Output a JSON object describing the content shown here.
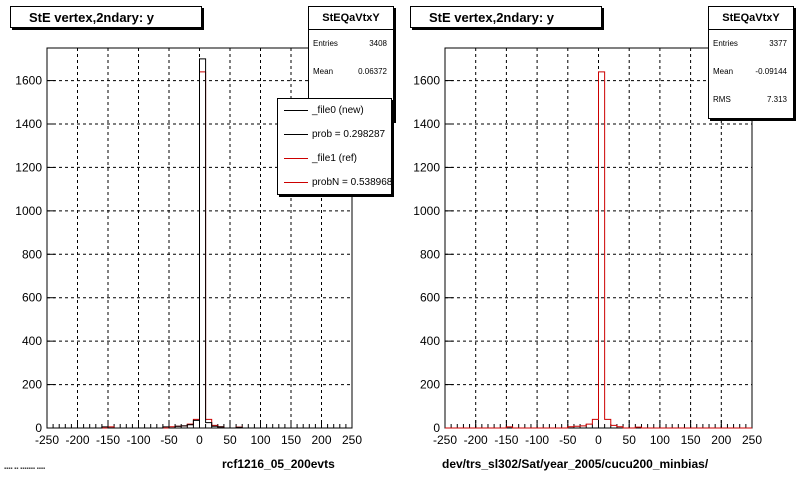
{
  "panels": [
    {
      "title": "StE  vertex,2ndary: y",
      "stats": {
        "name": "StEQaVtxY",
        "rows": [
          {
            "label": "Entries",
            "value": "3408"
          },
          {
            "label": "Mean",
            "value": "0.06372"
          }
        ]
      },
      "legend": [
        {
          "label": "_file0 (new)",
          "color": "#000000"
        },
        {
          "label": "prob = 0.298287",
          "color": "#000000"
        },
        {
          "label": "_file1 (ref)",
          "color": "#cc0000"
        },
        {
          "label": "probN = 0.538968",
          "color": "#cc0000"
        }
      ],
      "footer": "rcf1216_05_200evts"
    },
    {
      "title": "StE  vertex,2ndary: y",
      "stats": {
        "name": "StEQaVtxY",
        "rows": [
          {
            "label": "Entries",
            "value": "3377"
          },
          {
            "label": "Mean",
            "value": "-0.09144"
          },
          {
            "label": "RMS",
            "value": "7.313"
          }
        ]
      },
      "legend": [],
      "footer": "dev/trs_sl302/Sat/year_2005/cucu200_minbias/"
    }
  ],
  "colors": {
    "new": "#000000",
    "ref": "#cc0000",
    "grid": "#000000"
  },
  "chart_data": [
    {
      "type": "histogram",
      "title": "StE  vertex,2ndary: y",
      "xlim": [
        -250,
        250
      ],
      "ylim": [
        0,
        1750
      ],
      "xticks": [
        -250,
        -200,
        -150,
        -100,
        -50,
        0,
        50,
        100,
        150,
        200,
        250
      ],
      "yticks": [
        0,
        200,
        400,
        600,
        800,
        1000,
        1200,
        1400,
        1600
      ],
      "grid": true,
      "bin_width": 10,
      "series": [
        {
          "name": "_file0 (new)",
          "color": "#000000",
          "bins": [
            [
              -160,
              5
            ],
            [
              -60,
              5
            ],
            [
              -40,
              8
            ],
            [
              -30,
              10
            ],
            [
              -20,
              15
            ],
            [
              -10,
              35
            ],
            [
              0,
              1700
            ],
            [
              10,
              25
            ],
            [
              20,
              8
            ],
            [
              30,
              5
            ],
            [
              60,
              3
            ]
          ]
        },
        {
          "name": "_file1 (ref)",
          "color": "#cc0000",
          "bins": [
            [
              -150,
              5
            ],
            [
              -50,
              6
            ],
            [
              -40,
              8
            ],
            [
              -30,
              10
            ],
            [
              -20,
              18
            ],
            [
              -10,
              40
            ],
            [
              0,
              1640
            ],
            [
              10,
              40
            ],
            [
              20,
              12
            ],
            [
              30,
              6
            ],
            [
              60,
              4
            ]
          ]
        }
      ]
    },
    {
      "type": "histogram",
      "title": "StE  vertex,2ndary: y",
      "xlim": [
        -250,
        250
      ],
      "ylim": [
        0,
        1750
      ],
      "xticks": [
        -250,
        -200,
        -150,
        -100,
        -50,
        0,
        50,
        100,
        150,
        200,
        250
      ],
      "yticks": [
        0,
        200,
        400,
        600,
        800,
        1000,
        1200,
        1400,
        1600
      ],
      "grid": true,
      "bin_width": 10,
      "series": [
        {
          "name": "",
          "color": "#cc0000",
          "bins": [
            [
              -150,
              5
            ],
            [
              -50,
              6
            ],
            [
              -40,
              8
            ],
            [
              -30,
              10
            ],
            [
              -20,
              18
            ],
            [
              -10,
              40
            ],
            [
              0,
              1640
            ],
            [
              10,
              40
            ],
            [
              20,
              12
            ],
            [
              30,
              6
            ],
            [
              60,
              4
            ]
          ]
        }
      ]
    }
  ]
}
